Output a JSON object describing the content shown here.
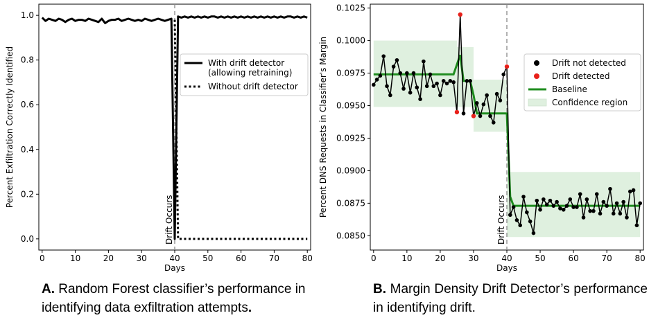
{
  "chart_data": [
    {
      "type": "line",
      "xlabel": "Days",
      "ylabel": "Percent Exfiltration Correctly Identified",
      "xlim": [
        -1,
        81
      ],
      "ylim": [
        -0.05,
        1.05
      ],
      "x_ticks": [
        0,
        10,
        20,
        30,
        40,
        50,
        60,
        70,
        80
      ],
      "x_tick_labels": [
        "0",
        "10",
        "20",
        "30",
        "40",
        "50",
        "60",
        "70",
        "80"
      ],
      "y_ticks": [
        0.0,
        0.2,
        0.4,
        0.6,
        0.8,
        1.0
      ],
      "y_tick_labels": [
        "0.0",
        "0.2",
        "0.4",
        "0.6",
        "0.8",
        "1.0"
      ],
      "legend_position": "center-right",
      "annotation": {
        "text": "Drift Occurs",
        "x": 40
      },
      "series": [
        {
          "name": "With drift detector\n(allowing retraining)",
          "style": "solid",
          "x": [
            0,
            1,
            2,
            3,
            4,
            5,
            6,
            7,
            8,
            9,
            10,
            11,
            12,
            13,
            14,
            15,
            16,
            17,
            18,
            19,
            20,
            21,
            22,
            23,
            24,
            25,
            26,
            27,
            28,
            29,
            30,
            31,
            32,
            33,
            34,
            35,
            36,
            37,
            38,
            39,
            40,
            41,
            42,
            43,
            44,
            45,
            46,
            47,
            48,
            49,
            50,
            51,
            52,
            53,
            54,
            55,
            56,
            57,
            58,
            59,
            60,
            61,
            62,
            63,
            64,
            65,
            66,
            67,
            68,
            69,
            70,
            71,
            72,
            73,
            74,
            75,
            76,
            77,
            78,
            79,
            80
          ],
          "y": [
            0.99,
            0.975,
            0.985,
            0.98,
            0.975,
            0.985,
            0.98,
            0.97,
            0.98,
            0.985,
            0.975,
            0.98,
            0.98,
            0.975,
            0.985,
            0.98,
            0.975,
            0.97,
            0.985,
            0.965,
            0.975,
            0.98,
            0.98,
            0.985,
            0.975,
            0.98,
            0.985,
            0.98,
            0.975,
            0.98,
            0.975,
            0.985,
            0.98,
            0.975,
            0.98,
            0.985,
            0.98,
            0.975,
            0.98,
            0.985,
            0.0,
            0.995,
            0.99,
            0.995,
            0.99,
            0.995,
            0.99,
            0.995,
            0.99,
            0.995,
            0.99,
            0.995,
            0.995,
            0.99,
            0.995,
            0.99,
            0.995,
            0.99,
            0.995,
            0.99,
            0.995,
            0.99,
            0.995,
            0.99,
            0.995,
            0.99,
            0.995,
            0.99,
            0.995,
            0.99,
            0.995,
            0.99,
            0.995,
            0.99,
            0.995,
            0.995,
            0.99,
            0.995,
            0.99,
            0.995,
            0.99
          ]
        },
        {
          "name": "Without drift detector",
          "style": "dotted",
          "x": [
            40,
            41,
            42,
            43,
            44,
            45,
            46,
            47,
            48,
            49,
            50,
            51,
            52,
            53,
            54,
            55,
            56,
            57,
            58,
            59,
            60,
            61,
            62,
            63,
            64,
            65,
            66,
            67,
            68,
            69,
            70,
            71,
            72,
            73,
            74,
            75,
            76,
            77,
            78,
            79,
            80
          ],
          "y": [
            0.98,
            0,
            0,
            0,
            0,
            0,
            0,
            0,
            0,
            0,
            0,
            0,
            0,
            0,
            0,
            0,
            0,
            0,
            0,
            0,
            0,
            0,
            0,
            0,
            0,
            0,
            0,
            0,
            0,
            0,
            0,
            0,
            0,
            0,
            0,
            0,
            0,
            0,
            0,
            0,
            0
          ]
        }
      ]
    },
    {
      "type": "line",
      "xlabel": "Days",
      "ylabel": "Percent DNS Requests in Classifier's Margin",
      "xlim": [
        -1,
        81
      ],
      "ylim": [
        0.0839,
        0.1028
      ],
      "x_ticks": [
        0,
        10,
        20,
        30,
        40,
        50,
        60,
        70,
        80
      ],
      "x_tick_labels": [
        "0",
        "10",
        "20",
        "30",
        "40",
        "50",
        "60",
        "70",
        "80"
      ],
      "y_ticks": [
        0.085,
        0.0875,
        0.09,
        0.0925,
        0.095,
        0.0975,
        0.1,
        0.1025
      ],
      "y_tick_labels": [
        "0.0850",
        "0.0875",
        "0.0900",
        "0.0925",
        "0.0950",
        "0.0975",
        "0.1000",
        "0.1025"
      ],
      "legend_position": "upper-right",
      "annotation": {
        "text": "Drift Occurs",
        "x": 40
      },
      "legend": [
        {
          "label": "Drift not detected",
          "marker": "dot",
          "color": "#000000"
        },
        {
          "label": "Drift detected",
          "marker": "dot",
          "color": "#e8201a"
        },
        {
          "label": "Baseline",
          "marker": "line",
          "color": "#1e8c1e"
        },
        {
          "label": "Confidence region",
          "marker": "patch",
          "color": "#dff0df"
        }
      ],
      "series": [
        {
          "name": "Drift not detected",
          "x": [
            0,
            1,
            2,
            3,
            4,
            5,
            6,
            7,
            8,
            9,
            10,
            11,
            12,
            13,
            14,
            15,
            16,
            17,
            18,
            19,
            20,
            21,
            22,
            23,
            24,
            25,
            26,
            27,
            28,
            29,
            30,
            31,
            32,
            33,
            34,
            35,
            36,
            37,
            38,
            39,
            40,
            41,
            42,
            43,
            44,
            45,
            46,
            47,
            48,
            49,
            50,
            51,
            52,
            53,
            54,
            55,
            56,
            57,
            58,
            59,
            60,
            61,
            62,
            63,
            64,
            65,
            66,
            67,
            68,
            69,
            70,
            71,
            72,
            73,
            74,
            75,
            76,
            77,
            78,
            79,
            80
          ],
          "y": [
            0.0966,
            0.097,
            0.0973,
            0.0988,
            0.0965,
            0.0958,
            0.098,
            0.0985,
            0.0975,
            0.0963,
            0.0975,
            0.096,
            0.0975,
            0.0964,
            0.0955,
            0.0984,
            0.0965,
            0.0974,
            0.0965,
            0.0967,
            0.0958,
            0.0969,
            0.0967,
            0.0969,
            0.0968,
            0.0945,
            0.102,
            0.0944,
            0.0969,
            0.0969,
            0.0942,
            0.0952,
            0.0942,
            0.0951,
            0.0958,
            0.0942,
            0.0937,
            0.0959,
            0.0954,
            0.0974,
            0.098,
            0.0866,
            0.0872,
            0.0862,
            0.0858,
            0.088,
            0.0868,
            0.0861,
            0.0852,
            0.0877,
            0.087,
            0.0878,
            0.0874,
            0.0877,
            0.0873,
            0.0876,
            0.0871,
            0.087,
            0.0873,
            0.0878,
            0.0872,
            0.0872,
            0.0882,
            0.0864,
            0.0878,
            0.0869,
            0.0869,
            0.0882,
            0.0867,
            0.0876,
            0.0873,
            0.0886,
            0.0867,
            0.0875,
            0.0867,
            0.0876,
            0.0864,
            0.0884,
            0.0885,
            0.0858,
            0.0875
          ]
        },
        {
          "name": "Drift detected",
          "x": [
            25,
            26,
            30,
            40
          ],
          "y": [
            0.0945,
            0.102,
            0.0942,
            0.098
          ]
        },
        {
          "name": "Baseline",
          "x": [
            0,
            24,
            26,
            27,
            28,
            29,
            30,
            31,
            32,
            33,
            34,
            35,
            36,
            37,
            38,
            39,
            40,
            41,
            42,
            80
          ],
          "y": [
            0.0974,
            0.0974,
            0.0989,
            0.0969,
            0.0969,
            0.0969,
            0.0958,
            0.0944,
            0.0944,
            0.0944,
            0.0944,
            0.0944,
            0.0944,
            0.0944,
            0.0944,
            0.0944,
            0.0944,
            0.088,
            0.0873,
            0.0873
          ]
        },
        {
          "name": "Confidence region",
          "regions": [
            {
              "x": [
                0,
                25
              ],
              "y": [
                0.0949,
                0.1
              ]
            },
            {
              "x": [
                25,
                30
              ],
              "y": [
                0.0949,
                0.0995
              ]
            },
            {
              "x": [
                30,
                40
              ],
              "y": [
                0.093,
                0.097
              ]
            },
            {
              "x": [
                40,
                80
              ],
              "y": [
                0.0849,
                0.0899
              ]
            }
          ]
        }
      ]
    }
  ],
  "captions": {
    "a_bold": "A.",
    "a_text": " Random Forest classifier’s performance in identifying data exfiltration attempts",
    "a_end": ".",
    "b_bold": "B.",
    "b_text": " Margin Density Drift Detector’s performance in identifying drift."
  },
  "colors": {
    "line": "#000000",
    "detected": "#e8201a",
    "baseline": "#1e8c1e",
    "confidence": "#dff0df",
    "drift_line": "#888888"
  }
}
